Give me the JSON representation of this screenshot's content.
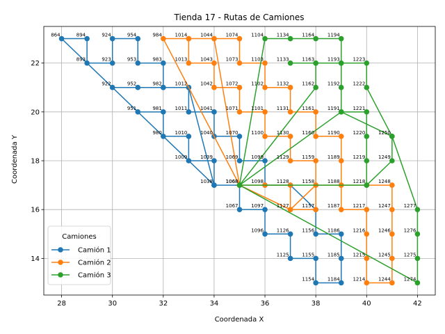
{
  "chart_data": {
    "type": "line",
    "title": "Tienda 17 - Rutas de Camiones",
    "xlabel": "Coordenada X",
    "ylabel": "Coordenada Y",
    "xlim": [
      27.3,
      42.7
    ],
    "ylim": [
      12.5,
      23.5
    ],
    "xticks": [
      28,
      30,
      32,
      34,
      36,
      38,
      40,
      42
    ],
    "yticks": [
      14,
      16,
      18,
      20,
      22
    ],
    "grid": true,
    "legend": {
      "title": "Camiones",
      "position": "lower-left"
    },
    "series": [
      {
        "name": "Camión 1",
        "color": "#1f77b4",
        "points": [
          [
            34,
            17
          ],
          [
            28,
            23
          ],
          [
            29,
            23
          ],
          [
            29,
            22
          ],
          [
            30,
            22
          ],
          [
            30,
            23
          ],
          [
            31,
            23
          ],
          [
            31,
            22
          ],
          [
            32,
            22
          ],
          [
            32,
            21
          ],
          [
            31,
            21
          ],
          [
            30,
            21
          ],
          [
            31,
            20
          ],
          [
            32,
            20
          ],
          [
            32,
            19
          ],
          [
            33,
            19
          ],
          [
            33,
            18
          ],
          [
            34,
            18
          ],
          [
            34,
            17
          ],
          [
            35,
            17
          ],
          [
            35,
            16
          ],
          [
            36,
            16
          ],
          [
            36,
            15
          ],
          [
            37,
            15
          ],
          [
            37,
            14
          ],
          [
            38,
            14
          ],
          [
            38,
            13
          ],
          [
            39,
            13
          ],
          [
            39,
            14
          ],
          [
            39,
            15
          ],
          [
            38,
            15
          ],
          [
            38,
            16
          ],
          [
            37,
            17
          ],
          [
            36,
            17
          ],
          [
            36,
            18
          ],
          [
            35,
            18
          ],
          [
            35,
            19
          ],
          [
            34,
            19
          ],
          [
            34,
            20
          ],
          [
            33,
            20
          ],
          [
            33,
            21
          ],
          [
            32,
            21
          ],
          [
            33,
            21
          ],
          [
            34,
            17
          ]
        ]
      },
      {
        "name": "Camión 2",
        "color": "#ff7f0e",
        "points": [
          [
            35,
            17
          ],
          [
            32,
            23
          ],
          [
            33,
            23
          ],
          [
            34,
            23
          ],
          [
            35,
            23
          ],
          [
            35,
            22
          ],
          [
            36,
            22
          ],
          [
            36,
            21
          ],
          [
            37,
            21
          ],
          [
            37,
            20
          ],
          [
            38,
            20
          ],
          [
            38,
            19
          ],
          [
            39,
            19
          ],
          [
            39,
            18
          ],
          [
            39,
            17
          ],
          [
            40,
            17
          ],
          [
            41,
            17
          ],
          [
            41,
            16
          ],
          [
            41,
            15
          ],
          [
            41,
            14
          ],
          [
            41,
            13
          ],
          [
            40,
            13
          ],
          [
            40,
            14
          ],
          [
            40,
            15
          ],
          [
            40,
            16
          ],
          [
            39,
            16
          ],
          [
            39,
            17
          ],
          [
            38,
            17
          ],
          [
            38,
            18
          ],
          [
            37,
            18
          ],
          [
            37,
            19
          ],
          [
            36,
            19
          ],
          [
            36,
            20
          ],
          [
            35,
            20
          ],
          [
            35,
            21
          ],
          [
            34,
            21
          ],
          [
            34,
            22
          ],
          [
            33,
            22
          ],
          [
            33,
            23
          ],
          [
            34,
            23
          ],
          [
            35,
            17
          ],
          [
            36,
            17
          ],
          [
            37,
            17
          ],
          [
            37,
            16
          ],
          [
            38,
            17
          ],
          [
            38,
            16
          ],
          [
            37,
            16
          ],
          [
            35,
            17
          ]
        ]
      },
      {
        "name": "Camión 3",
        "color": "#2ca02c",
        "points": [
          [
            35,
            17
          ],
          [
            36,
            23
          ],
          [
            37,
            23
          ],
          [
            38,
            23
          ],
          [
            39,
            23
          ],
          [
            39,
            22
          ],
          [
            38,
            22
          ],
          [
            37,
            22
          ],
          [
            38,
            22
          ],
          [
            38,
            21
          ],
          [
            35,
            17
          ],
          [
            39,
            20
          ],
          [
            39,
            21
          ],
          [
            39,
            22
          ],
          [
            40,
            22
          ],
          [
            40,
            21
          ],
          [
            41,
            19
          ],
          [
            42,
            16
          ],
          [
            42,
            15
          ],
          [
            42,
            14
          ],
          [
            42,
            13
          ],
          [
            35,
            17
          ],
          [
            40,
            17
          ],
          [
            40,
            18
          ],
          [
            40,
            19
          ],
          [
            40,
            20
          ],
          [
            39,
            20
          ],
          [
            41,
            19
          ],
          [
            41,
            18
          ],
          [
            40,
            17
          ],
          [
            35,
            17
          ]
        ]
      }
    ],
    "point_labels": [
      {
        "text": "864",
        "x": 28,
        "y": 23
      },
      {
        "text": "894",
        "x": 29,
        "y": 23
      },
      {
        "text": "924",
        "x": 30,
        "y": 23
      },
      {
        "text": "954",
        "x": 31,
        "y": 23
      },
      {
        "text": "984",
        "x": 32,
        "y": 23
      },
      {
        "text": "1014",
        "x": 33,
        "y": 23
      },
      {
        "text": "1044",
        "x": 34,
        "y": 23
      },
      {
        "text": "1074",
        "x": 35,
        "y": 23
      },
      {
        "text": "1104",
        "x": 36,
        "y": 23
      },
      {
        "text": "1134",
        "x": 37,
        "y": 23
      },
      {
        "text": "1164",
        "x": 38,
        "y": 23
      },
      {
        "text": "1194",
        "x": 39,
        "y": 23
      },
      {
        "text": "893",
        "x": 29,
        "y": 22
      },
      {
        "text": "923",
        "x": 30,
        "y": 22
      },
      {
        "text": "953",
        "x": 31,
        "y": 22
      },
      {
        "text": "983",
        "x": 32,
        "y": 22
      },
      {
        "text": "1013",
        "x": 33,
        "y": 22
      },
      {
        "text": "1043",
        "x": 34,
        "y": 22
      },
      {
        "text": "1073",
        "x": 35,
        "y": 22
      },
      {
        "text": "1103",
        "x": 36,
        "y": 22
      },
      {
        "text": "1133",
        "x": 37,
        "y": 22
      },
      {
        "text": "1163",
        "x": 38,
        "y": 22
      },
      {
        "text": "1193",
        "x": 39,
        "y": 22
      },
      {
        "text": "1223",
        "x": 40,
        "y": 22
      },
      {
        "text": "922",
        "x": 30,
        "y": 21
      },
      {
        "text": "952",
        "x": 31,
        "y": 21
      },
      {
        "text": "982",
        "x": 32,
        "y": 21
      },
      {
        "text": "1012",
        "x": 33,
        "y": 21
      },
      {
        "text": "1042",
        "x": 34,
        "y": 21
      },
      {
        "text": "1072",
        "x": 35,
        "y": 21
      },
      {
        "text": "1102",
        "x": 36,
        "y": 21
      },
      {
        "text": "1132",
        "x": 37,
        "y": 21
      },
      {
        "text": "1162",
        "x": 38,
        "y": 21
      },
      {
        "text": "1192",
        "x": 39,
        "y": 21
      },
      {
        "text": "1222",
        "x": 40,
        "y": 21
      },
      {
        "text": "951",
        "x": 31,
        "y": 20
      },
      {
        "text": "981",
        "x": 32,
        "y": 20
      },
      {
        "text": "1011",
        "x": 33,
        "y": 20
      },
      {
        "text": "1041",
        "x": 34,
        "y": 20
      },
      {
        "text": "1071",
        "x": 35,
        "y": 20
      },
      {
        "text": "1101",
        "x": 36,
        "y": 20
      },
      {
        "text": "1131",
        "x": 37,
        "y": 20
      },
      {
        "text": "1161",
        "x": 38,
        "y": 20
      },
      {
        "text": "1191",
        "x": 39,
        "y": 20
      },
      {
        "text": "1221",
        "x": 40,
        "y": 20
      },
      {
        "text": "980",
        "x": 32,
        "y": 19
      },
      {
        "text": "1010",
        "x": 33,
        "y": 19
      },
      {
        "text": "1040",
        "x": 34,
        "y": 19
      },
      {
        "text": "1070",
        "x": 35,
        "y": 19
      },
      {
        "text": "1100",
        "x": 36,
        "y": 19
      },
      {
        "text": "1130",
        "x": 37,
        "y": 19
      },
      {
        "text": "1160",
        "x": 38,
        "y": 19
      },
      {
        "text": "1190",
        "x": 39,
        "y": 19
      },
      {
        "text": "1220",
        "x": 40,
        "y": 19
      },
      {
        "text": "1250",
        "x": 41,
        "y": 19
      },
      {
        "text": "1009",
        "x": 33,
        "y": 18
      },
      {
        "text": "1039",
        "x": 34,
        "y": 18
      },
      {
        "text": "1069",
        "x": 35,
        "y": 18
      },
      {
        "text": "1099",
        "x": 36,
        "y": 18
      },
      {
        "text": "1129",
        "x": 37,
        "y": 18
      },
      {
        "text": "1159",
        "x": 38,
        "y": 18
      },
      {
        "text": "1189",
        "x": 39,
        "y": 18
      },
      {
        "text": "1219",
        "x": 40,
        "y": 18
      },
      {
        "text": "1249",
        "x": 41,
        "y": 18
      },
      {
        "text": "1038",
        "x": 34,
        "y": 17
      },
      {
        "text": "1068",
        "x": 35,
        "y": 17
      },
      {
        "text": "1068",
        "x": 35,
        "y": 17
      },
      {
        "text": "1098",
        "x": 36,
        "y": 17
      },
      {
        "text": "1128",
        "x": 37,
        "y": 17
      },
      {
        "text": "1158",
        "x": 38,
        "y": 17
      },
      {
        "text": "1188",
        "x": 39,
        "y": 17
      },
      {
        "text": "1218",
        "x": 40,
        "y": 17
      },
      {
        "text": "1248",
        "x": 41,
        "y": 17
      },
      {
        "text": "1067",
        "x": 35,
        "y": 16
      },
      {
        "text": "1097",
        "x": 36,
        "y": 16
      },
      {
        "text": "1127",
        "x": 37,
        "y": 16
      },
      {
        "text": "1157",
        "x": 38,
        "y": 16
      },
      {
        "text": "1187",
        "x": 39,
        "y": 16
      },
      {
        "text": "1217",
        "x": 40,
        "y": 16
      },
      {
        "text": "1247",
        "x": 41,
        "y": 16
      },
      {
        "text": "1277",
        "x": 42,
        "y": 16
      },
      {
        "text": "1096",
        "x": 36,
        "y": 15
      },
      {
        "text": "1126",
        "x": 37,
        "y": 15
      },
      {
        "text": "1156",
        "x": 38,
        "y": 15
      },
      {
        "text": "1186",
        "x": 39,
        "y": 15
      },
      {
        "text": "1216",
        "x": 40,
        "y": 15
      },
      {
        "text": "1246",
        "x": 41,
        "y": 15
      },
      {
        "text": "1276",
        "x": 42,
        "y": 15
      },
      {
        "text": "1125",
        "x": 37,
        "y": 14
      },
      {
        "text": "1155",
        "x": 38,
        "y": 14
      },
      {
        "text": "1185",
        "x": 39,
        "y": 14
      },
      {
        "text": "1215",
        "x": 40,
        "y": 14
      },
      {
        "text": "1245",
        "x": 41,
        "y": 14
      },
      {
        "text": "1275",
        "x": 42,
        "y": 14
      },
      {
        "text": "1154",
        "x": 38,
        "y": 13
      },
      {
        "text": "1184",
        "x": 39,
        "y": 13
      },
      {
        "text": "1214",
        "x": 40,
        "y": 13
      },
      {
        "text": "1244",
        "x": 41,
        "y": 13
      },
      {
        "text": "1274",
        "x": 42,
        "y": 13
      }
    ]
  }
}
